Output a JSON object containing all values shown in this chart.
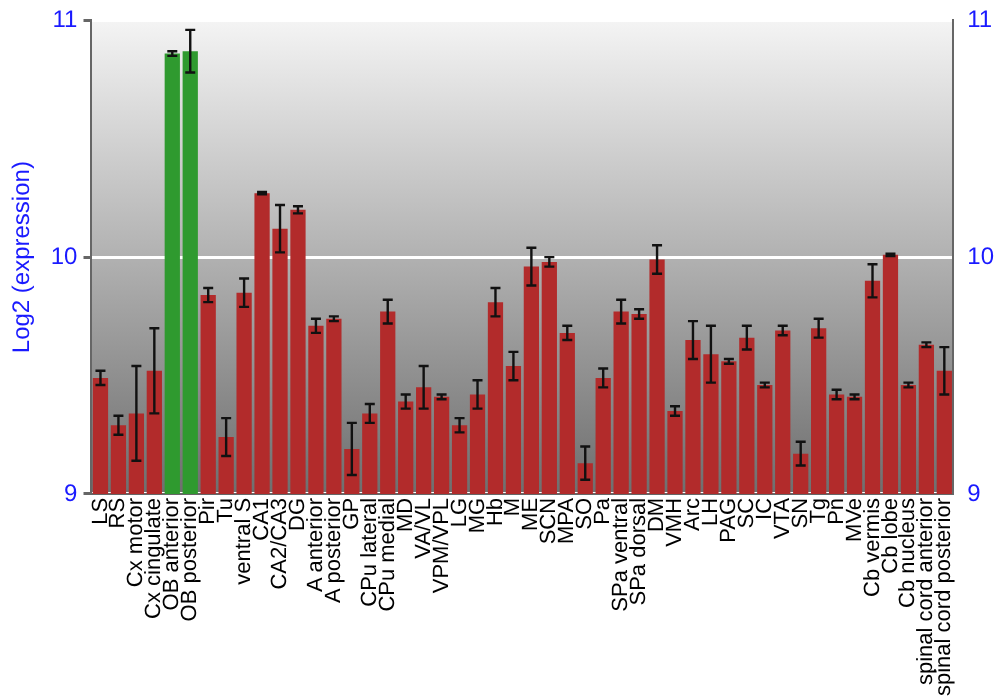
{
  "chart_data": {
    "type": "bar",
    "ylabel": "Log2 (expression)",
    "categories": [
      "LS",
      "RS",
      "Cx motor",
      "Cx cingulate",
      "OB anterior",
      "OB posterior",
      "Pir",
      "Tu",
      "ventral S",
      "CA1",
      "CA2/CA3",
      "DG",
      "A anterior",
      "A posterior",
      "GP",
      "CPu lateral",
      "CPu medial",
      "MD",
      "VA/VL",
      "VPM/VPL",
      "LG",
      "MG",
      "Hb",
      "M",
      "ME",
      "SCN",
      "MPA",
      "SO",
      "Pa",
      "SPa ventral",
      "SPa dorsal",
      "DM",
      "VMH",
      "Arc",
      "LH",
      "PAG",
      "SC",
      "IC",
      "VTA",
      "SN",
      "Tg",
      "Pn",
      "MVe",
      "Cb vermis",
      "Cb lobe",
      "Cb nucleus",
      "spinal cord anterior",
      "spinal cord posterior"
    ],
    "values": [
      9.49,
      9.29,
      9.34,
      9.52,
      10.86,
      10.87,
      9.84,
      9.24,
      9.85,
      10.27,
      10.12,
      10.2,
      9.71,
      9.74,
      9.19,
      9.34,
      9.77,
      9.39,
      9.45,
      9.41,
      9.29,
      9.42,
      9.81,
      9.54,
      9.96,
      9.98,
      9.68,
      9.13,
      9.49,
      9.77,
      9.76,
      9.99,
      9.35,
      9.65,
      9.59,
      9.56,
      9.66,
      9.46,
      9.69,
      9.17,
      9.7,
      9.42,
      9.41,
      9.9,
      10.01,
      9.46,
      9.63,
      9.52
    ],
    "errors": [
      0.03,
      0.04,
      0.2,
      0.18,
      0.01,
      0.09,
      0.03,
      0.08,
      0.06,
      0.005,
      0.1,
      0.015,
      0.03,
      0.01,
      0.11,
      0.04,
      0.05,
      0.03,
      0.09,
      0.01,
      0.03,
      0.06,
      0.06,
      0.06,
      0.08,
      0.02,
      0.03,
      0.07,
      0.04,
      0.05,
      0.02,
      0.06,
      0.02,
      0.08,
      0.12,
      0.01,
      0.05,
      0.01,
      0.02,
      0.05,
      0.04,
      0.02,
      0.01,
      0.07,
      0.005,
      0.01,
      0.01,
      0.1
    ],
    "colors": [
      "#b22b2b",
      "#b22b2b",
      "#b22b2b",
      "#b22b2b",
      "#2f9a2f",
      "#2f9a2f",
      "#b22b2b",
      "#b22b2b",
      "#b22b2b",
      "#b22b2b",
      "#b22b2b",
      "#b22b2b",
      "#b22b2b",
      "#b22b2b",
      "#b22b2b",
      "#b22b2b",
      "#b22b2b",
      "#b22b2b",
      "#b22b2b",
      "#b22b2b",
      "#b22b2b",
      "#b22b2b",
      "#b22b2b",
      "#b22b2b",
      "#b22b2b",
      "#b22b2b",
      "#b22b2b",
      "#b22b2b",
      "#b22b2b",
      "#b22b2b",
      "#b22b2b",
      "#b22b2b",
      "#b22b2b",
      "#b22b2b",
      "#b22b2b",
      "#b22b2b",
      "#b22b2b",
      "#b22b2b",
      "#b22b2b",
      "#b22b2b",
      "#b22b2b",
      "#b22b2b",
      "#b22b2b",
      "#b22b2b",
      "#b22b2b",
      "#b22b2b",
      "#b22b2b",
      "#b22b2b"
    ],
    "ylim": [
      9,
      11
    ],
    "yticks": [
      9,
      10,
      11
    ],
    "y2lim": [
      9,
      11
    ],
    "y2ticks": [
      9,
      10,
      11
    ],
    "grid": "y",
    "legend": false
  }
}
